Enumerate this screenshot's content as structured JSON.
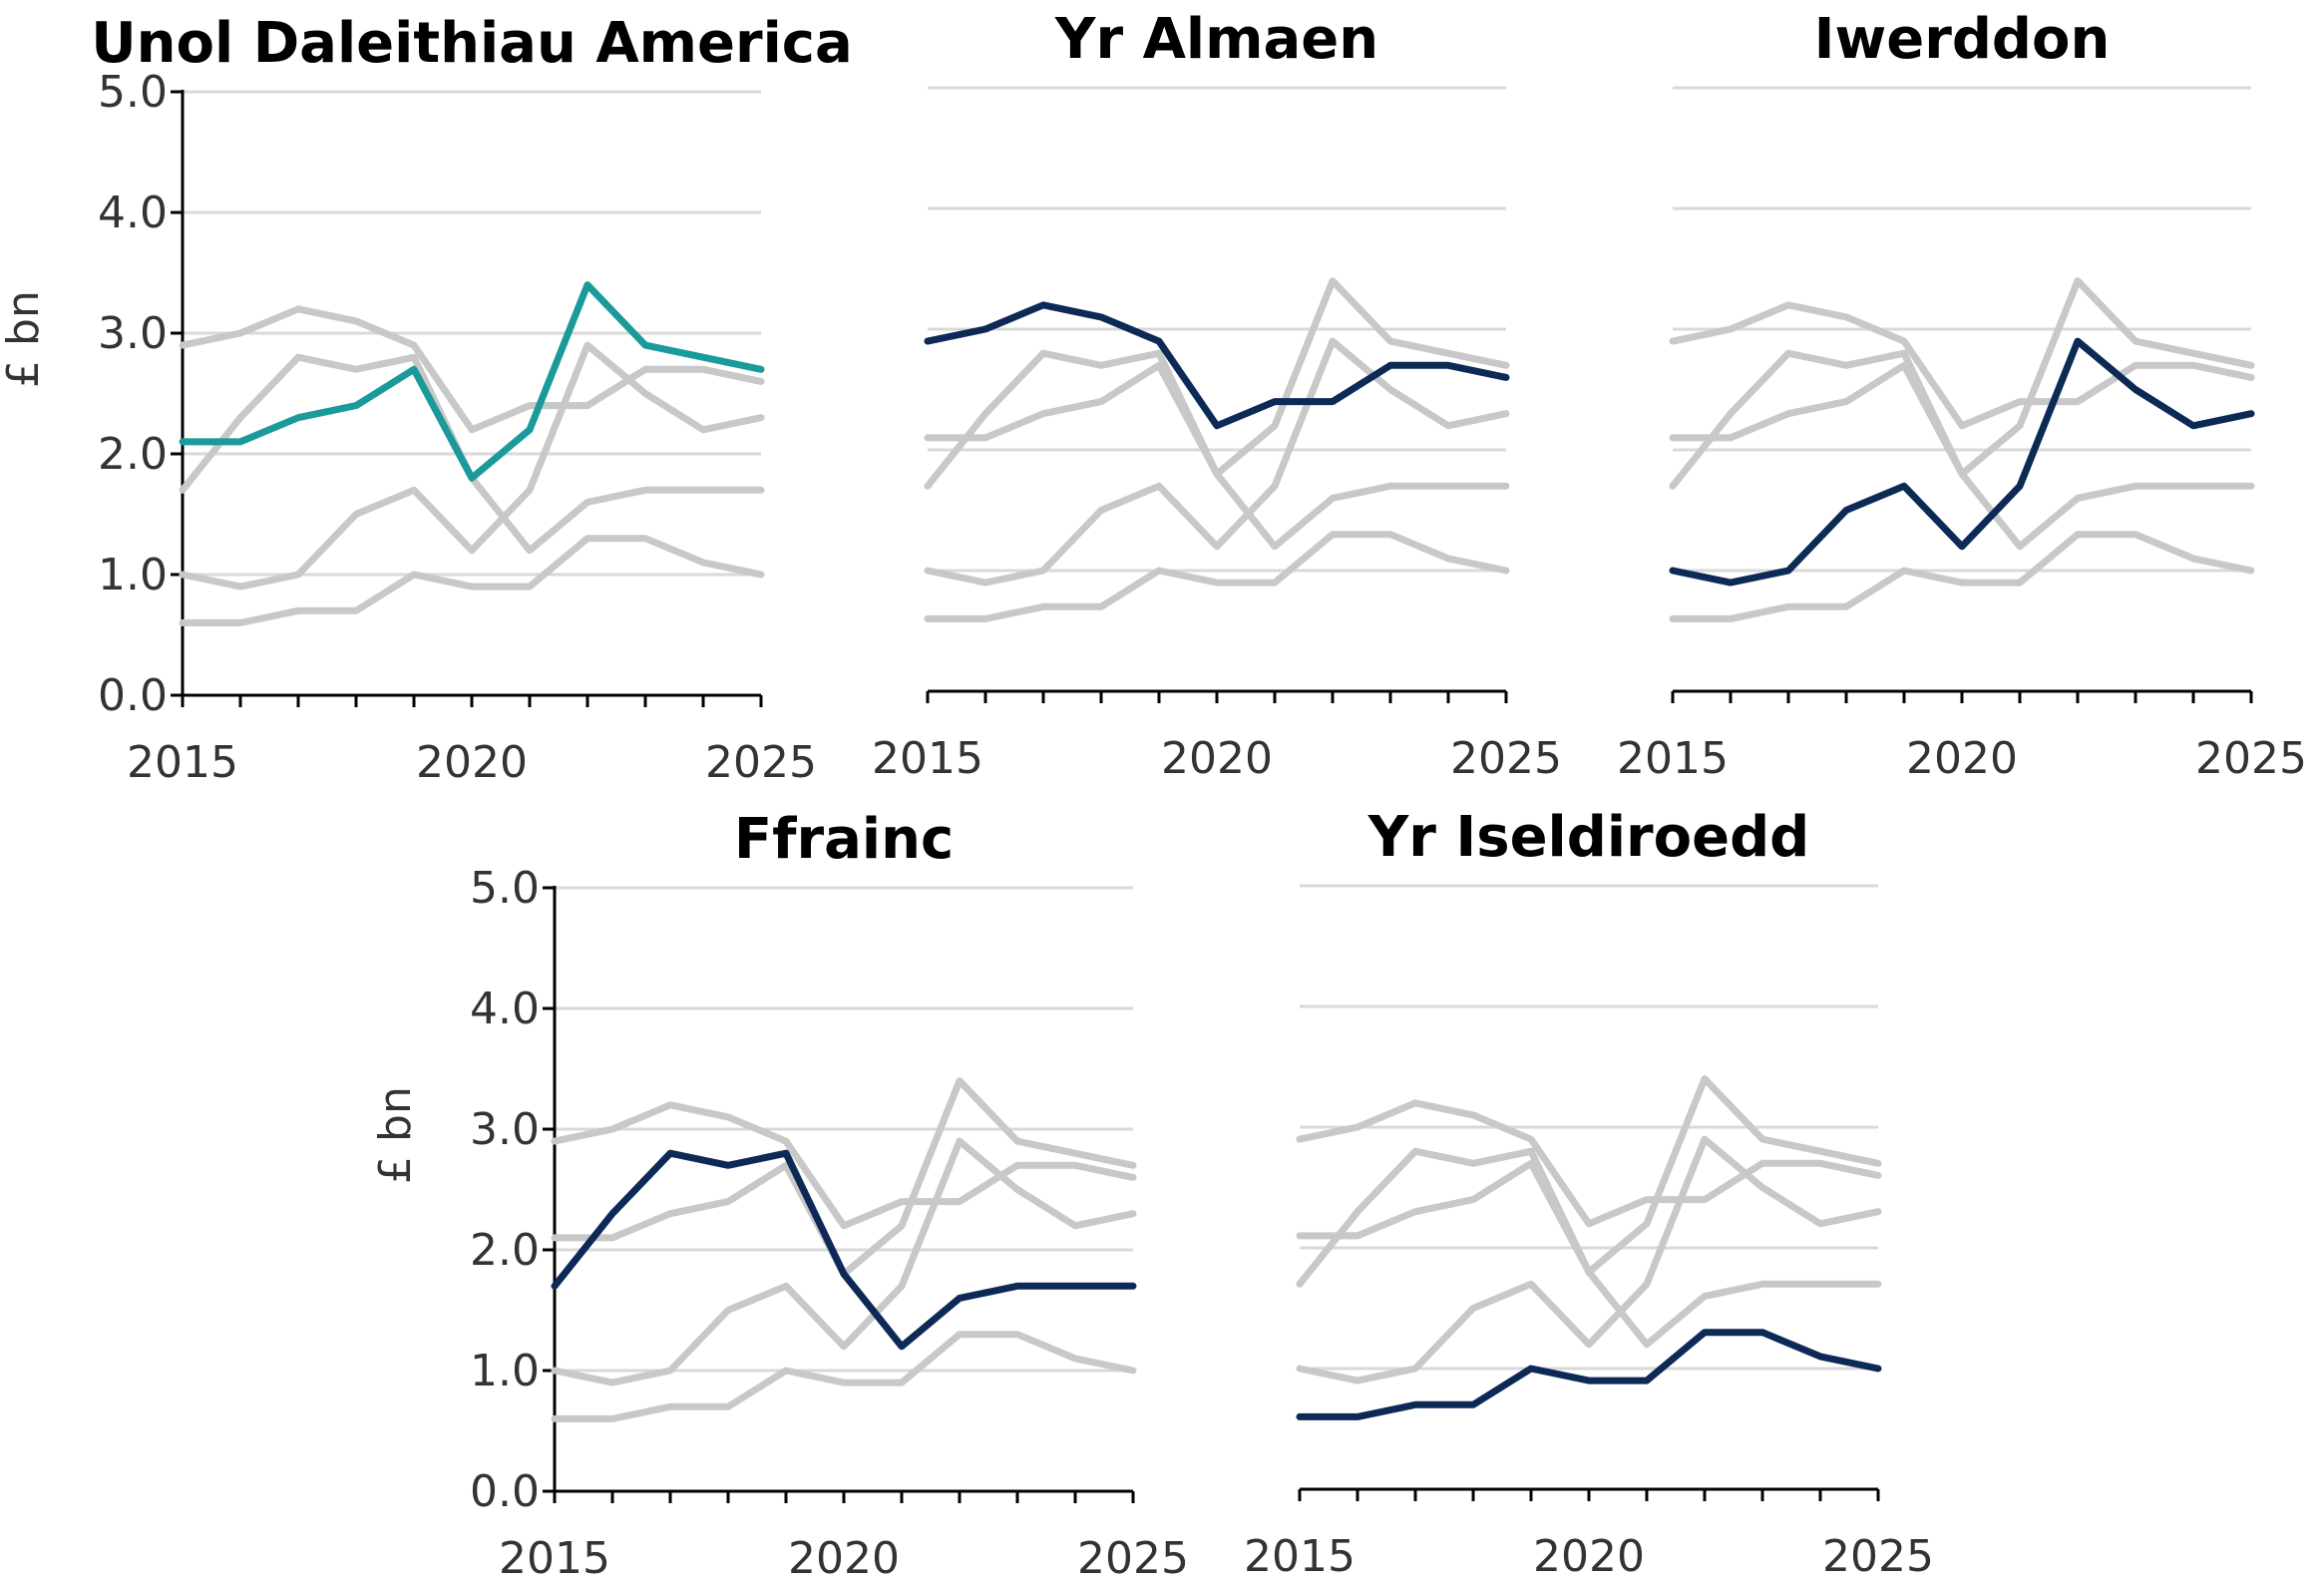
{
  "chart_data": {
    "type": "line",
    "layout": "small-multiples",
    "x": [
      2015,
      2016,
      2017,
      2018,
      2019,
      2020,
      2021,
      2022,
      2023,
      2024,
      2025
    ],
    "xticks": [
      "2015",
      "2020",
      "2025"
    ],
    "yticks": [
      "0.0",
      "1.0",
      "2.0",
      "3.0",
      "4.0",
      "5.0"
    ],
    "ylim": [
      0,
      5
    ],
    "xlim": [
      2015,
      2025
    ],
    "ylabel": "£ bn",
    "grid": true,
    "colors": {
      "context": "#c8c8c8",
      "highlight_default": "#0d2a57",
      "highlight_first": "#1a9a9a",
      "grid": "#d9d9d9",
      "axis": "#000000"
    },
    "series": [
      {
        "name": "Unol Daleithiau America",
        "values": [
          2.1,
          2.1,
          2.3,
          2.4,
          2.7,
          1.8,
          2.2,
          3.4,
          2.9,
          2.8,
          2.7
        ]
      },
      {
        "name": "Yr Almaen",
        "values": [
          2.9,
          3.0,
          3.2,
          3.1,
          2.9,
          2.2,
          2.4,
          2.4,
          2.7,
          2.7,
          2.6
        ]
      },
      {
        "name": "Iwerddon",
        "values": [
          1.0,
          0.9,
          1.0,
          1.5,
          1.7,
          1.2,
          1.7,
          2.9,
          2.5,
          2.2,
          2.3
        ]
      },
      {
        "name": "Ffrainc",
        "values": [
          1.7,
          2.3,
          2.8,
          2.7,
          2.8,
          1.8,
          1.2,
          1.6,
          1.7,
          1.7,
          1.7
        ]
      },
      {
        "name": "Yr Iseldiroedd",
        "values": [
          0.6,
          0.6,
          0.7,
          0.7,
          1.0,
          0.9,
          0.9,
          1.3,
          1.3,
          1.1,
          1.0
        ]
      }
    ],
    "panels": [
      {
        "title": "Unol Daleithiau America",
        "highlight": 0,
        "show_yaxis": true
      },
      {
        "title": "Yr Almaen",
        "highlight": 1,
        "show_yaxis": false
      },
      {
        "title": "Iwerddon",
        "highlight": 2,
        "show_yaxis": false
      },
      {
        "title": "Ffrainc",
        "highlight": 3,
        "show_yaxis": true
      },
      {
        "title": "Yr Iseldiroedd",
        "highlight": 4,
        "show_yaxis": false
      }
    ]
  }
}
